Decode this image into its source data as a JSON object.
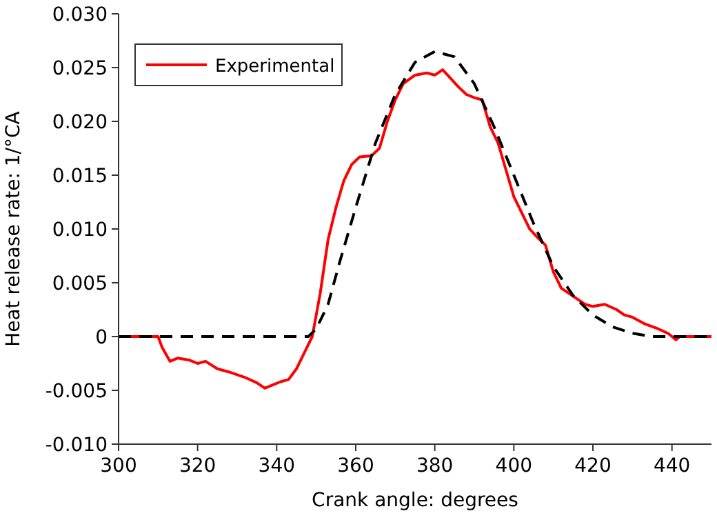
{
  "chart_data": {
    "type": "line",
    "xlabel": "Crank angle: degrees",
    "ylabel": "Heat release rate: 1/°CA",
    "xlim": [
      300,
      450
    ],
    "xticks": [
      300,
      320,
      340,
      360,
      380,
      400,
      420,
      440
    ],
    "ylim": [
      -0.01,
      0.03
    ],
    "yticks": [
      {
        "value": -0.01,
        "label": "-0.010"
      },
      {
        "value": -0.005,
        "label": "-0.005"
      },
      0,
      {
        "value": 0.005,
        "label": "0.005"
      },
      {
        "value": 0.01,
        "label": "0.010"
      },
      {
        "value": 0.015,
        "label": "0.015"
      },
      {
        "value": 0.02,
        "label": "0.020"
      },
      {
        "value": 0.025,
        "label": "0.025"
      },
      {
        "value": 0.03,
        "label": "0.030"
      }
    ],
    "legend": "top left",
    "grid": false,
    "series": [
      {
        "name": "Experimental",
        "color": "#ff0000",
        "line_style": "solid",
        "x": [
          300,
          310,
          311,
          313,
          315,
          318,
          320,
          322,
          325,
          328,
          332,
          335,
          337,
          339,
          341,
          343,
          345,
          347,
          349,
          351,
          353,
          355,
          357,
          359,
          361,
          364,
          366,
          368,
          370,
          372,
          375,
          378,
          380,
          382,
          384,
          386,
          388,
          390,
          392,
          394,
          396,
          398,
          400,
          402,
          404,
          406,
          408,
          410,
          412,
          414,
          416,
          418,
          420,
          423,
          426,
          428,
          430,
          433,
          436,
          439,
          441,
          442,
          450
        ],
        "values": [
          0,
          0,
          -0.001,
          -0.0023,
          -0.002,
          -0.0022,
          -0.0025,
          -0.0023,
          -0.003,
          -0.0033,
          -0.0038,
          -0.0043,
          -0.0048,
          -0.0045,
          -0.0042,
          -0.004,
          -0.003,
          -0.0015,
          0,
          0.004,
          0.009,
          0.012,
          0.0145,
          0.016,
          0.0167,
          0.0168,
          0.0175,
          0.02,
          0.022,
          0.0235,
          0.0243,
          0.0245,
          0.0243,
          0.0248,
          0.024,
          0.0232,
          0.0225,
          0.0222,
          0.022,
          0.0195,
          0.018,
          0.0155,
          0.013,
          0.0115,
          0.01,
          0.0092,
          0.0085,
          0.006,
          0.0045,
          0.004,
          0.0035,
          0.003,
          0.0028,
          0.003,
          0.0025,
          0.002,
          0.0018,
          0.0012,
          0.0008,
          0.0003,
          -0.0003,
          0,
          0
        ]
      },
      {
        "color": "#000000",
        "line_style": "dashed",
        "x": [
          300,
          348,
          350,
          353,
          356,
          360,
          365,
          370,
          375,
          380,
          385,
          390,
          395,
          400,
          405,
          410,
          415,
          420,
          425,
          430,
          435,
          450
        ],
        "values": [
          0,
          0,
          0.0007,
          0.003,
          0.007,
          0.012,
          0.018,
          0.0225,
          0.0255,
          0.0265,
          0.026,
          0.0235,
          0.0195,
          0.015,
          0.0105,
          0.0065,
          0.0038,
          0.002,
          0.0009,
          0.0003,
          0,
          0
        ]
      }
    ]
  }
}
